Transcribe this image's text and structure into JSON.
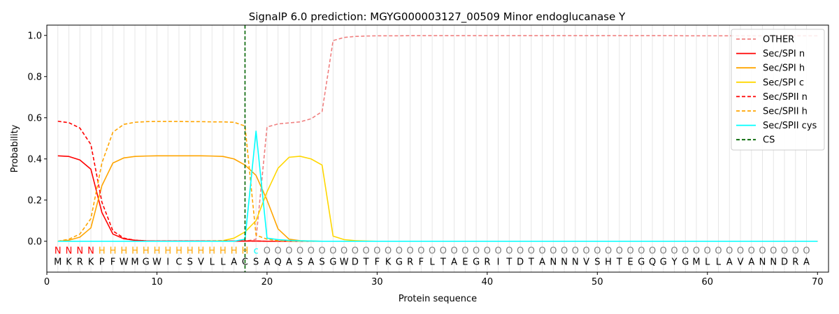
{
  "chart_data": {
    "type": "line",
    "title": "SignalP 6.0 prediction: MGYG000003127_00509 Minor endoglucanase Y",
    "xlabel": "Protein sequence",
    "ylabel": "Probability",
    "xlim": [
      0,
      71
    ],
    "ylim": [
      -0.15,
      1.05
    ],
    "x_ticks": [
      0,
      10,
      20,
      30,
      40,
      50,
      60,
      70
    ],
    "y_ticks": [
      0.0,
      0.2,
      0.4,
      0.6,
      0.8,
      1.0
    ],
    "x_tick_labels": [
      "0",
      "10",
      "20",
      "30",
      "40",
      "50",
      "60",
      "70"
    ],
    "y_tick_labels": [
      "0.0",
      "0.2",
      "0.4",
      "0.6",
      "0.8",
      "1.0"
    ],
    "grid": "vertical lines at each residue",
    "legend_position": "top-right",
    "sequence": "MKRKPFWMGWICSVLLACSAQASASGWDTFKGRFLTAEGRITDTANNNVSHTEGQGYGMLLAVANNDRA",
    "region_labels": "NNNNHHHHHHHHHHHHHHcOOOOOOOOOOOOOOOOOOOOOOOOOOOOOOOOOOOOOOOOOOOOOOOOOOO",
    "region_colors": {
      "N": "#ff0000",
      "H": "#ffa500",
      "c": "#00ffff",
      "O": "#808080"
    },
    "cs_position": 18,
    "series": [
      {
        "name": "OTHER",
        "color": "#f08080",
        "dash": true,
        "values": [
          0.0,
          0.0,
          0.0,
          0.0,
          0.0,
          0.0,
          0.0,
          0.0,
          0.0,
          0.0,
          0.0,
          0.0,
          0.0,
          0.0,
          0.0,
          0.0,
          0.0,
          0.0,
          0.01,
          0.555,
          0.57,
          0.575,
          0.58,
          0.595,
          0.63,
          0.975,
          0.99,
          0.995,
          0.997,
          0.998,
          0.998,
          0.998,
          0.999,
          0.999,
          0.999,
          0.999,
          0.999,
          0.999,
          0.999,
          0.999,
          0.999,
          0.999,
          0.999,
          0.999,
          0.999,
          0.999,
          0.999,
          0.999,
          0.999,
          0.999,
          0.999,
          0.999,
          0.999,
          0.999,
          0.999,
          0.999,
          0.999,
          0.998,
          0.998,
          0.998,
          0.998,
          0.998,
          0.998,
          0.998,
          0.998,
          0.998,
          0.998,
          0.998,
          0.998,
          0.998
        ]
      },
      {
        "name": "Sec/SPI n",
        "color": "#ff0000",
        "dash": false,
        "values": [
          0.415,
          0.412,
          0.395,
          0.35,
          0.14,
          0.035,
          0.012,
          0.005,
          0.002,
          0.001,
          0.001,
          0.001,
          0.001,
          0.001,
          0.001,
          0.001,
          0.001,
          0.001,
          0.001,
          0.0,
          0.0,
          0.0,
          0.0,
          0.0,
          0.0,
          0.0,
          0.0,
          0.0,
          0.0,
          0.0,
          0.0,
          0.0,
          0.0,
          0.0,
          0.0,
          0.0,
          0.0,
          0.0,
          0.0,
          0.0,
          0.0,
          0.0,
          0.0,
          0.0,
          0.0,
          0.0,
          0.0,
          0.0,
          0.0,
          0.0,
          0.0,
          0.0,
          0.0,
          0.0,
          0.0,
          0.0,
          0.0,
          0.0,
          0.0,
          0.0,
          0.0,
          0.0,
          0.0,
          0.0,
          0.0,
          0.0,
          0.0,
          0.0,
          0.0,
          0.0
        ]
      },
      {
        "name": "Sec/SPI h",
        "color": "#ffa500",
        "dash": false,
        "values": [
          0.0,
          0.005,
          0.02,
          0.065,
          0.27,
          0.38,
          0.405,
          0.412,
          0.414,
          0.415,
          0.415,
          0.415,
          0.415,
          0.415,
          0.414,
          0.412,
          0.4,
          0.37,
          0.32,
          0.2,
          0.06,
          0.01,
          0.003,
          0.001,
          0.0,
          0.0,
          0.0,
          0.0,
          0.0,
          0.0,
          0.0,
          0.0,
          0.0,
          0.0,
          0.0,
          0.0,
          0.0,
          0.0,
          0.0,
          0.0,
          0.0,
          0.0,
          0.0,
          0.0,
          0.0,
          0.0,
          0.0,
          0.0,
          0.0,
          0.0,
          0.0,
          0.0,
          0.0,
          0.0,
          0.0,
          0.0,
          0.0,
          0.0,
          0.0,
          0.0,
          0.0,
          0.0,
          0.0,
          0.0,
          0.0,
          0.0,
          0.0,
          0.0,
          0.0,
          0.0
        ]
      },
      {
        "name": "Sec/SPI c",
        "color": "#ffd700",
        "dash": false,
        "values": [
          0.0,
          0.0,
          0.0,
          0.0,
          0.0,
          0.0,
          0.0,
          0.0,
          0.0,
          0.0,
          0.0,
          0.0,
          0.0,
          0.0,
          0.001,
          0.003,
          0.015,
          0.045,
          0.1,
          0.24,
          0.355,
          0.408,
          0.413,
          0.4,
          0.37,
          0.025,
          0.008,
          0.003,
          0.001,
          0.0,
          0.0,
          0.0,
          0.0,
          0.0,
          0.0,
          0.0,
          0.0,
          0.0,
          0.0,
          0.0,
          0.0,
          0.0,
          0.0,
          0.0,
          0.0,
          0.0,
          0.0,
          0.0,
          0.0,
          0.0,
          0.0,
          0.0,
          0.0,
          0.0,
          0.0,
          0.0,
          0.0,
          0.0,
          0.0,
          0.0,
          0.0,
          0.0,
          0.0,
          0.0,
          0.0,
          0.0,
          0.0,
          0.0,
          0.0,
          0.0
        ]
      },
      {
        "name": "Sec/SPII n",
        "color": "#ff0000",
        "dash": true,
        "values": [
          0.583,
          0.576,
          0.55,
          0.47,
          0.19,
          0.05,
          0.015,
          0.005,
          0.002,
          0.001,
          0.001,
          0.001,
          0.001,
          0.001,
          0.001,
          0.001,
          0.001,
          0.001,
          0.001,
          0.0,
          0.0,
          0.0,
          0.0,
          0.0,
          0.0,
          0.0,
          0.0,
          0.0,
          0.0,
          0.0,
          0.0,
          0.0,
          0.0,
          0.0,
          0.0,
          0.0,
          0.0,
          0.0,
          0.0,
          0.0,
          0.0,
          0.0,
          0.0,
          0.0,
          0.0,
          0.0,
          0.0,
          0.0,
          0.0,
          0.0,
          0.0,
          0.0,
          0.0,
          0.0,
          0.0,
          0.0,
          0.0,
          0.0,
          0.0,
          0.0,
          0.0,
          0.0,
          0.0,
          0.0,
          0.0,
          0.0,
          0.0,
          0.0,
          0.0,
          0.0
        ]
      },
      {
        "name": "Sec/SPII h",
        "color": "#ffa500",
        "dash": true,
        "values": [
          0.0,
          0.01,
          0.035,
          0.11,
          0.38,
          0.53,
          0.568,
          0.578,
          0.581,
          0.582,
          0.582,
          0.582,
          0.581,
          0.581,
          0.58,
          0.58,
          0.578,
          0.56,
          0.03,
          0.01,
          0.003,
          0.001,
          0.0,
          0.0,
          0.0,
          0.0,
          0.0,
          0.0,
          0.0,
          0.0,
          0.0,
          0.0,
          0.0,
          0.0,
          0.0,
          0.0,
          0.0,
          0.0,
          0.0,
          0.0,
          0.0,
          0.0,
          0.0,
          0.0,
          0.0,
          0.0,
          0.0,
          0.0,
          0.0,
          0.0,
          0.0,
          0.0,
          0.0,
          0.0,
          0.0,
          0.0,
          0.0,
          0.0,
          0.0,
          0.0,
          0.0,
          0.0,
          0.0,
          0.0,
          0.0,
          0.0,
          0.0,
          0.0,
          0.0,
          0.0
        ]
      },
      {
        "name": "Sec/SPII cys",
        "color": "#00ffff",
        "dash": false,
        "values": [
          0.0,
          0.0,
          0.0,
          0.0,
          0.0,
          0.0,
          0.0,
          0.0,
          0.0,
          0.0,
          0.0,
          0.0,
          0.0,
          0.0,
          0.0,
          0.0,
          0.0,
          0.01,
          0.535,
          0.015,
          0.008,
          0.004,
          0.002,
          0.001,
          0.0,
          0.0,
          0.0,
          0.0,
          0.0,
          0.0,
          0.0,
          0.0,
          0.0,
          0.0,
          0.0,
          0.0,
          0.0,
          0.0,
          0.0,
          0.0,
          0.0,
          0.0,
          0.0,
          0.0,
          0.0,
          0.0,
          0.0,
          0.0,
          0.0,
          0.0,
          0.0,
          0.0,
          0.0,
          0.0,
          0.0,
          0.0,
          0.0,
          0.0,
          0.0,
          0.0,
          0.0,
          0.0,
          0.0,
          0.0,
          0.0,
          0.0,
          0.0,
          0.0,
          0.0,
          0.0
        ]
      }
    ],
    "legend": [
      {
        "label": "OTHER",
        "color": "#f08080",
        "dash": true
      },
      {
        "label": "Sec/SPI n",
        "color": "#ff0000",
        "dash": false
      },
      {
        "label": "Sec/SPI h",
        "color": "#ffa500",
        "dash": false
      },
      {
        "label": "Sec/SPI c",
        "color": "#ffd700",
        "dash": false
      },
      {
        "label": "Sec/SPII n",
        "color": "#ff0000",
        "dash": true
      },
      {
        "label": "Sec/SPII h",
        "color": "#ffa500",
        "dash": true
      },
      {
        "label": "Sec/SPII cys",
        "color": "#00ffff",
        "dash": false
      },
      {
        "label": "CS",
        "color": "#006400",
        "dash": true
      }
    ]
  }
}
